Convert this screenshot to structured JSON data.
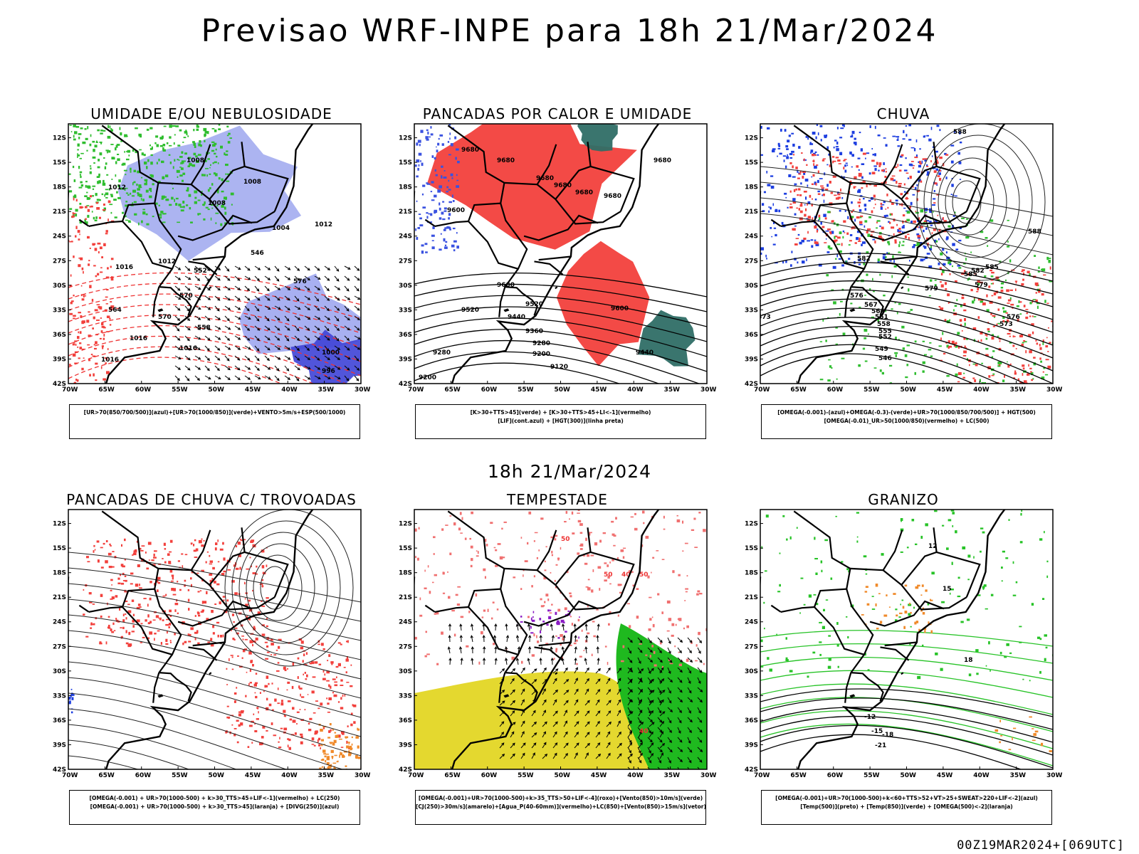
{
  "title": "Previsao WRF-INPE  para 18h 21/Mar/2024",
  "subtitle": "18h 21/Mar/2024",
  "footer": "00Z19MAR2024+[069UTC]",
  "axes": {
    "lat_labels": [
      "12S",
      "15S",
      "18S",
      "21S",
      "24S",
      "27S",
      "30S",
      "33S",
      "36S",
      "39S",
      "42S"
    ],
    "lon_labels": [
      "70W",
      "65W",
      "60W",
      "55W",
      "50W",
      "45W",
      "40W",
      "35W",
      "30W"
    ]
  },
  "colors": {
    "humidity_blue": "#9ea7ef",
    "strong_blue": "#3e43d6",
    "green": "#2fbd2f",
    "red": "#f2403c",
    "dark_teal": "#2f6e66",
    "yellow": "#e4d82f",
    "orange": "#f08a2a",
    "purple": "#8a1cc4"
  },
  "panels": [
    {
      "title": "UMIDADE E/OU NEBULOSIDADE",
      "legend": [
        "[UR>70(850/700/500)](azul)+[UR>70(1000/850)](verde)+VENTO>5m/s+ESP(500/1000)"
      ],
      "labels": [
        "1012",
        "1008",
        "1008",
        "1008",
        "1004",
        "1012",
        "1016",
        "1012",
        "1016",
        "1016",
        "1000",
        "1016",
        "996",
        "564",
        "570",
        "558",
        "552",
        "546",
        "576",
        "570"
      ]
    },
    {
      "title": "PANCADAS POR CALOR E UMIDADE",
      "legend": [
        "[K>30+TTS>45](verde) + [K>30+TTS>45+LI<-1](vermelho)",
        "[LIF](cont.azul) + [HGT(300)](linha preta)"
      ],
      "labels": [
        "9680",
        "9680",
        "9680",
        "9680",
        "9680",
        "9680",
        "9600",
        "9600",
        "9520",
        "9520",
        "9440",
        "9360",
        "9280",
        "9200",
        "9120",
        "9280",
        "9200",
        "9440",
        "9600",
        "9680"
      ]
    },
    {
      "title": "CHUVA",
      "legend": [
        "[OMEGA(-0.001)-(azul)+OMEGA(-0.3)-(verde)+UR>70(1000/850/700/500)] + HGT(500)",
        "[OMEGA(-0.01)_UR>50(1000/850)(vermelho) + LC(500)"
      ],
      "labels": [
        "588",
        "585",
        "582",
        "579",
        "576",
        "573",
        "567",
        "564",
        "561",
        "558",
        "555",
        "552",
        "549",
        "546",
        "588",
        "585",
        "582",
        "579",
        "576",
        "573"
      ]
    },
    {
      "title": "PANCADAS DE CHUVA C/ TROVOADAS",
      "legend": [
        "[OMEGA(-0.001) + UR>70(1000-500) + k>30_TTS>45+LIF<-1](vermelho) + LC(250)",
        "[OMEGA(-0.001) + UR>70(1000-500) + k>30_TTS>45](laranja) + [DIVG(250)](azul)"
      ],
      "labels": []
    },
    {
      "title": "TEMPESTADE",
      "legend": [
        "[OMEGA(-0.001)+UR>70(1000-500)+k>35_TTS>50+LIF<-4](roxo)+[Vento(850)>10m/s](verde)",
        "[CJ(250)>30m/s](amarelo)+[Agua_P(40-60mm)](vermelho)+LC(850)+[Vento(850)>15m/s](vetor)"
      ],
      "labels": [
        "50",
        "50",
        "40",
        "50",
        "40"
      ]
    },
    {
      "title": "GRANIZO",
      "legend": [
        "[OMEGA(-0.001)+UR>70(1000-500)+k<60+TTS>52+VT>25+SWEAT>220+LIF<-2](azul)",
        "[Temp(500)](preto) + [Temp(850)](verde) + [OMEGA(500)<-2](laranja)"
      ],
      "labels": [
        "-12",
        "-15",
        "-18",
        "-21",
        "12",
        "15",
        "18"
      ]
    }
  ]
}
